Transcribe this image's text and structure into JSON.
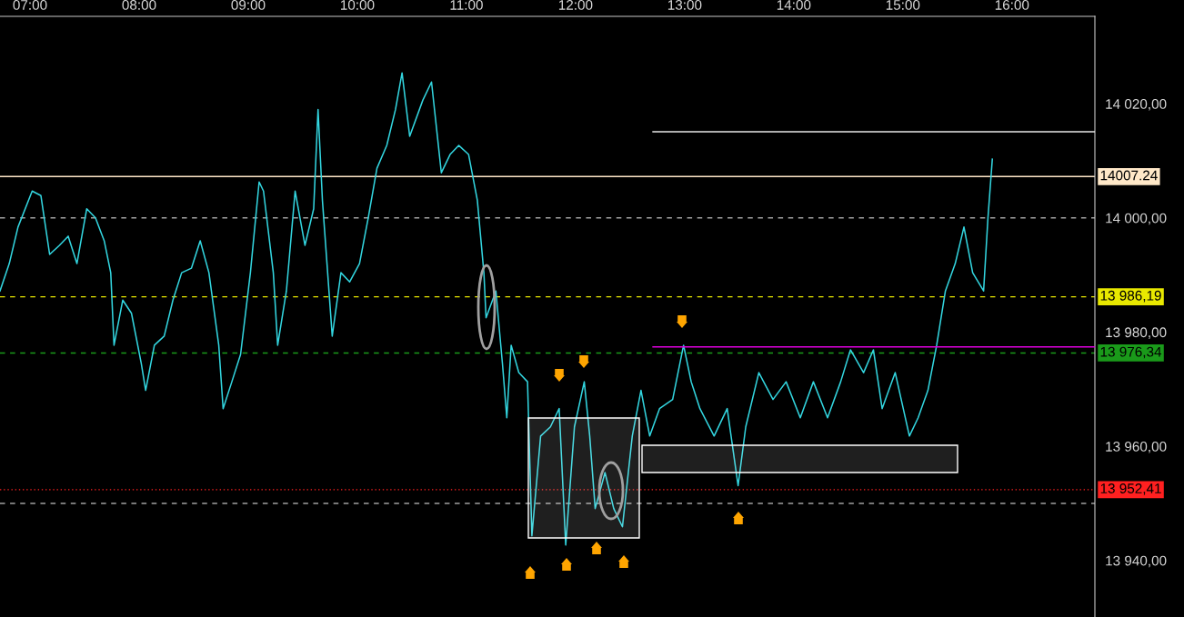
{
  "chart_data": {
    "type": "line",
    "series": [
      {
        "color": "#33d6e0",
        "x": [
          6.725,
          6.81,
          6.89,
          7.02,
          7.1,
          7.18,
          7.27,
          7.35,
          7.43,
          7.52,
          7.6,
          7.68,
          7.74,
          7.77,
          7.85,
          7.93,
          8.02,
          8.06,
          8.14,
          8.23,
          8.31,
          8.39,
          8.48,
          8.56,
          8.64,
          8.73,
          8.77,
          8.85,
          8.93,
          9.02,
          9.1,
          9.14,
          9.23,
          9.27,
          9.35,
          9.43,
          9.52,
          9.6,
          9.64,
          9.68,
          9.77,
          9.85,
          9.93,
          10.02,
          10.1,
          10.18,
          10.27,
          10.35,
          10.41,
          10.48,
          10.6,
          10.68,
          10.77,
          10.85,
          10.93,
          11.02,
          11.1,
          11.16,
          11.18,
          11.27,
          11.33,
          11.37,
          11.41,
          11.48,
          11.56,
          11.6,
          11.68,
          11.77,
          11.85,
          11.91,
          11.99,
          12.08,
          12.13,
          12.18,
          12.27,
          12.35,
          12.43,
          12.52,
          12.6,
          12.68,
          12.77,
          12.89,
          12.99,
          13.06,
          13.14,
          13.27,
          13.39,
          13.49,
          13.56,
          13.68,
          13.81,
          13.93,
          14.06,
          14.18,
          14.31,
          14.43,
          14.52,
          14.64,
          14.73,
          14.81,
          14.93,
          15.06,
          15.14,
          15.23,
          15.31,
          15.39,
          15.48,
          15.56,
          15.64,
          15.74,
          15.78,
          15.82
        ],
        "values": [
          13987.2,
          13992.0,
          13998.4,
          14004.7,
          14003.9,
          13993.6,
          13995.2,
          13996.8,
          13992.0,
          14001.6,
          14000.0,
          13996.0,
          13990.4,
          13977.7,
          13985.6,
          13983.3,
          13974.5,
          13969.8,
          13977.7,
          13979.3,
          13985.6,
          13990.4,
          13991.2,
          13996.0,
          13990.4,
          13977.7,
          13966.6,
          13971.3,
          13976.1,
          13990.4,
          14006.3,
          14004.7,
          13990.4,
          13977.7,
          13987.2,
          14004.7,
          13995.2,
          14001.6,
          14019.0,
          14003.1,
          13979.3,
          13990.4,
          13988.8,
          13992.0,
          14000.0,
          14008.7,
          14012.7,
          14019.0,
          14025.4,
          14014.3,
          14020.6,
          14023.8,
          14007.9,
          14011.1,
          14012.7,
          14011.1,
          14003.1,
          13990.4,
          13982.5,
          13987.2,
          13974.5,
          13965.0,
          13977.7,
          13972.9,
          13971.3,
          13944.3,
          13961.8,
          13963.4,
          13966.6,
          13942.7,
          13963.4,
          13971.3,
          13961.8,
          13949.1,
          13955.4,
          13949.1,
          13945.9,
          13961.8,
          13969.8,
          13961.8,
          13966.6,
          13968.2,
          13977.7,
          13971.3,
          13966.6,
          13961.8,
          13966.6,
          13953.1,
          13963.4,
          13972.9,
          13968.2,
          13971.3,
          13965.0,
          13971.3,
          13965.0,
          13971.3,
          13976.9,
          13972.9,
          13976.9,
          13966.6,
          13972.9,
          13961.8,
          13965.0,
          13969.8,
          13977.7,
          13987.2,
          13992.0,
          13998.4,
          13990.4,
          13987.2,
          14000.0,
          14010.3
        ]
      },
      {
        "color": "#e8e8e8",
        "x": [
          12.71,
          16.76
        ],
        "values": [
          14015.1,
          14015.1
        ]
      },
      {
        "color": "#e000e0",
        "x": [
          12.71,
          16.76
        ],
        "values": [
          13977.4,
          13977.4
        ]
      }
    ],
    "xlim": [
      6.725,
      16.76
    ],
    "ylim": [
      13930.1,
      14035.3
    ],
    "xticks": [
      {
        "value": 7,
        "label": "07:00"
      },
      {
        "value": 8,
        "label": "08:00"
      },
      {
        "value": 9,
        "label": "09:00"
      },
      {
        "value": 10,
        "label": "10:00"
      },
      {
        "value": 11,
        "label": "11:00"
      },
      {
        "value": 12,
        "label": "12:00"
      },
      {
        "value": 13,
        "label": "13:00"
      },
      {
        "value": 14,
        "label": "14:00"
      },
      {
        "value": 15,
        "label": "15:00"
      },
      {
        "value": 16,
        "label": "16:00"
      }
    ],
    "yticks": [
      {
        "value": 13940,
        "label": "13 940,00"
      },
      {
        "value": 13960,
        "label": "13 960,00"
      },
      {
        "value": 13980,
        "label": "13 980,00"
      },
      {
        "value": 14000,
        "label": "14 000,00"
      },
      {
        "value": 14020,
        "label": "14 020,00"
      }
    ],
    "ref_lines": [
      {
        "axis": "y",
        "value": 14007.24,
        "label": "14007.24",
        "color": "#ffe8c8",
        "line_style": "solid"
      },
      {
        "axis": "y",
        "value": 14000,
        "color": "#a0a0a0",
        "line_style": "dashed"
      },
      {
        "axis": "y",
        "value": 13986.19,
        "label": "13 986,19",
        "color": "#e8e800",
        "line_style": "dashed"
      },
      {
        "axis": "y",
        "value": 13976.34,
        "label": "13 976,34",
        "color": "#1a9a1a",
        "line_style": "dashed"
      },
      {
        "axis": "y",
        "value": 13952.41,
        "label": "13 952,41",
        "color": "#ff2020",
        "line_style": "dotted"
      },
      {
        "axis": "y",
        "value": 13950,
        "color": "#a0a0a0",
        "line_style": "dashed"
      }
    ],
    "grid": false,
    "legend": false,
    "marker": "none",
    "line_style": "solid"
  }
}
